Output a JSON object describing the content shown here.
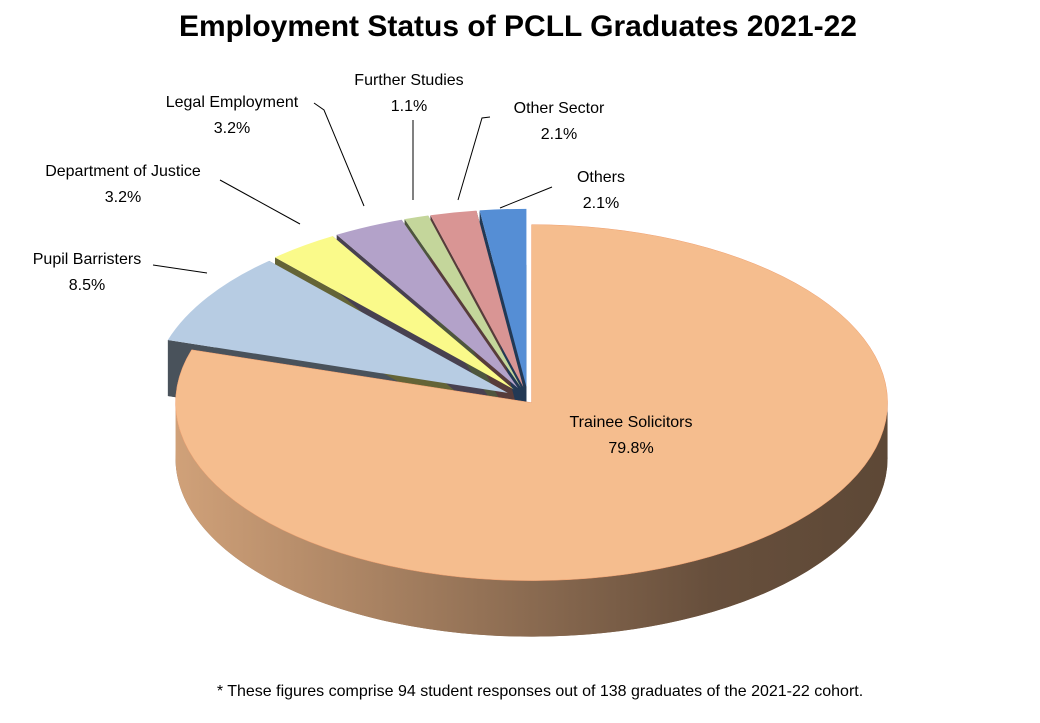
{
  "chart_data": {
    "type": "pie",
    "title": "Employment Status of PCLL Graduates 2021-22",
    "categories": [
      "Trainee Solicitors",
      "Pupil Barristers",
      "Department of Justice",
      "Legal Employment",
      "Further Studies",
      "Other Sector",
      "Others"
    ],
    "values": [
      79.8,
      8.5,
      3.2,
      3.2,
      1.1,
      2.1,
      2.1
    ],
    "value_labels": [
      "79.8%",
      "8.5%",
      "3.2%",
      "3.2%",
      "1.1%",
      "2.1%",
      "2.1%"
    ],
    "colors": [
      "#f5bd8e",
      "#b7cce3",
      "#fafa8a",
      "#b3a2c9",
      "#c4d69b",
      "#d99594",
      "#558ed5"
    ],
    "footnote": "* These figures comprise 94 student responses out of 138 graduates of the 2021-22 cohort."
  }
}
